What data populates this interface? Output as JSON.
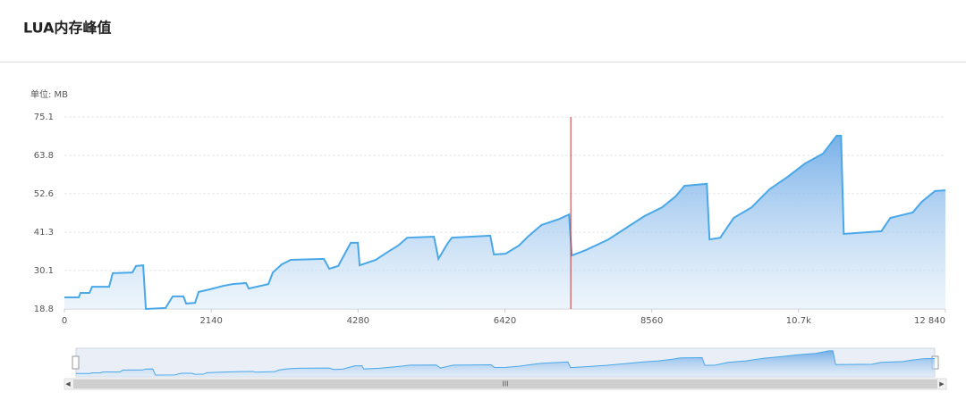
{
  "chart_data": {
    "type": "area",
    "title": "LUA内存峰值",
    "unit_label": "单位: MB",
    "x": [
      0,
      209,
      235,
      365,
      404,
      652,
      704,
      991,
      1043,
      1148,
      1187,
      1474,
      1578,
      1735,
      1774,
      1904,
      1956,
      2126,
      2321,
      2452,
      2647,
      2686,
      2973,
      3038,
      3169,
      3299,
      3782,
      3860,
      3990,
      4173,
      4277,
      4303,
      4538,
      4734,
      4864,
      4995,
      5386,
      5451,
      5581,
      5646,
      6207,
      6259,
      6429,
      6625,
      6755,
      6951,
      7212,
      7355,
      7394,
      7603,
      7929,
      8189,
      8450,
      8711,
      8906,
      9037,
      9363,
      9402,
      9558,
      9754,
      10015,
      10276,
      10537,
      10797,
      11058,
      11254,
      11319,
      11358,
      11906,
      12037,
      12363,
      12493,
      12689,
      12840
    ],
    "series": [
      {
        "color": "#4aa8e8",
        "values": [
          22.2,
          22.2,
          23.5,
          23.5,
          25.3,
          25.3,
          29.3,
          29.5,
          31.4,
          31.6,
          18.8,
          19.1,
          22.5,
          22.5,
          20.4,
          20.6,
          23.8,
          24.6,
          25.6,
          26.1,
          26.4,
          24.8,
          26.1,
          29.5,
          31.9,
          33.2,
          33.5,
          30.6,
          31.4,
          38.2,
          38.2,
          31.6,
          33.2,
          35.8,
          37.4,
          39.7,
          40.0,
          33.5,
          37.9,
          39.7,
          40.3,
          34.8,
          35.0,
          37.4,
          40.0,
          43.4,
          45.2,
          46.5,
          34.5,
          36.1,
          39.2,
          42.6,
          46.0,
          48.6,
          51.8,
          54.9,
          55.5,
          39.2,
          39.7,
          45.5,
          48.6,
          53.9,
          57.5,
          61.5,
          64.4,
          69.6,
          69.6,
          40.8,
          41.6,
          45.5,
          47.1,
          50.2,
          53.4,
          53.6
        ]
      }
    ],
    "xlim": [
      0,
      12840
    ],
    "xticks": [
      0,
      2140,
      4280,
      6420,
      8560,
      {
        "value": 10700,
        "label": "10.7k"
      },
      {
        "value": 12840,
        "label": "12 840"
      }
    ],
    "ylim": [
      18.8,
      75.1
    ],
    "yticks": [
      18.8,
      30.1,
      41.3,
      52.6,
      63.8,
      75.1
    ],
    "grid": true,
    "marker_x": 7380,
    "marker_color": "#c23531"
  }
}
